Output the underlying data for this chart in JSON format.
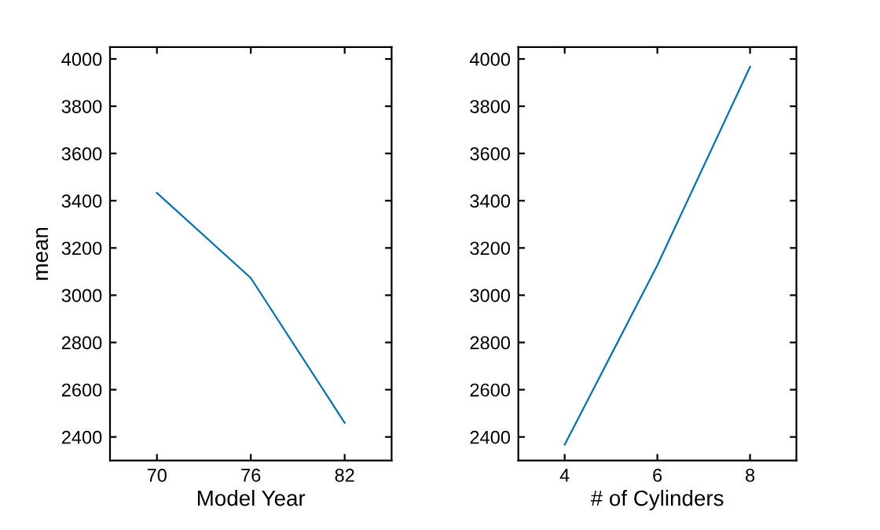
{
  "chart_data": [
    {
      "type": "line",
      "xlabel": "Model Year",
      "ylabel": "mean",
      "x": [
        70,
        76,
        82
      ],
      "series": [
        {
          "color": "#0072bd",
          "values": [
            3433,
            3073,
            2460
          ]
        }
      ],
      "xlim": [
        67,
        85
      ],
      "xticks": [
        70,
        76,
        82
      ],
      "ylim": [
        2300,
        4050
      ],
      "yticks": [
        2400,
        2600,
        2800,
        3000,
        3200,
        3400,
        3600,
        3800,
        4000
      ],
      "grid": false,
      "legend": false
    },
    {
      "type": "line",
      "xlabel": "# of Cylinders",
      "x": [
        4,
        6,
        8
      ],
      "series": [
        {
          "color": "#0072bd",
          "values": [
            2367,
            3127,
            3967
          ]
        }
      ],
      "xlim": [
        3,
        9
      ],
      "xticks": [
        4,
        6,
        8
      ],
      "ylim": [
        2300,
        4050
      ],
      "yticks": [
        2400,
        2600,
        2800,
        3000,
        3200,
        3400,
        3600,
        3800,
        4000
      ],
      "grid": false,
      "legend": false
    }
  ]
}
